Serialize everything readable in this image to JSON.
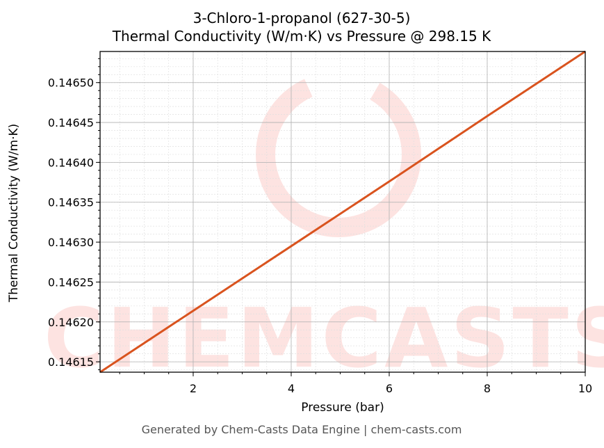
{
  "title_line1": "3-Chloro-1-propanol (627-30-5)",
  "title_line2": "Thermal Conductivity (W/m·K) vs Pressure @ 298.15 K",
  "footer": "Generated by Chem-Casts Data Engine | chem-casts.com",
  "watermark": "CHEMCASTS",
  "colors": {
    "line": "#d9531e",
    "watermark": "#fde3e1",
    "grid_major": "#b0b0b0",
    "grid_minor": "#e0e0e0"
  },
  "chart_data": {
    "type": "line",
    "title": "3-Chloro-1-propanol (627-30-5) Thermal Conductivity (W/m·K) vs Pressure @ 298.15 K",
    "xlabel": "Pressure (bar)",
    "ylabel": "Thermal Conductivity (W/m·K)",
    "xlim": [
      0.1,
      10
    ],
    "ylim": [
      0.146137,
      0.146539
    ],
    "xticks": [
      2,
      4,
      6,
      8,
      10
    ],
    "xtick_labels": [
      "2",
      "4",
      "6",
      "8",
      "10"
    ],
    "yticks": [
      0.14615,
      0.1462,
      0.14625,
      0.1463,
      0.14635,
      0.1464,
      0.14645,
      0.1465
    ],
    "ytick_labels": [
      "0.14615",
      "0.14620",
      "0.14625",
      "0.14630",
      "0.14635",
      "0.14640",
      "0.14645",
      "0.14650"
    ],
    "grid": true,
    "legend": null,
    "series": [
      {
        "name": "Thermal Conductivity",
        "x": [
          0.1,
          2,
          4,
          6,
          8,
          10
        ],
        "y": [
          0.146137,
          0.146214,
          0.146295,
          0.146376,
          0.146458,
          0.146539
        ]
      }
    ]
  }
}
